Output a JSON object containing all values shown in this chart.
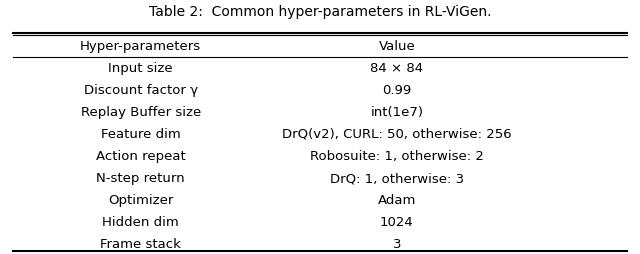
{
  "title": "Table 2:  Common hyper-parameters in RL-ViGen.",
  "col_headers": [
    "Hyper-parameters",
    "Value"
  ],
  "rows": [
    [
      "Input size",
      "84 × 84"
    ],
    [
      "Discount factor γ",
      "0.99"
    ],
    [
      "Replay Buffer size",
      "int(1e7)"
    ],
    [
      "Feature dim",
      "DrQ(v2), CURL: 50, otherwise: 256"
    ],
    [
      "Action repeat",
      "Robosuite: 1, otherwise: 2"
    ],
    [
      "N-step return",
      "DrQ: 1, otherwise: 3"
    ],
    [
      "Optimizer",
      "Adam"
    ],
    [
      "Hidden dim",
      "1024"
    ],
    [
      "Frame stack",
      "3"
    ]
  ],
  "bg_color": "#ffffff",
  "font_size": 9.5,
  "title_font_size": 10
}
